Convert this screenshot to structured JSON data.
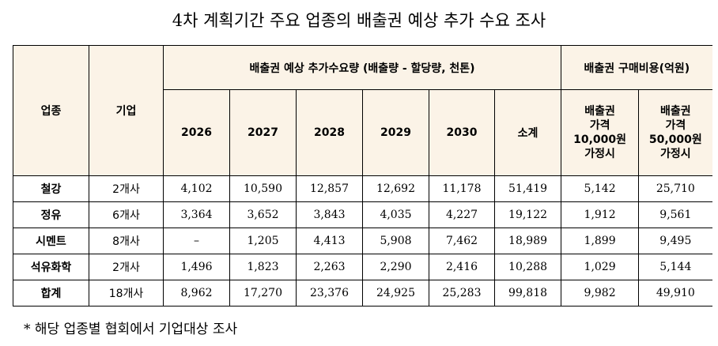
{
  "title": "4차 계획기간 주요 업종의 배출권 예상 추가 수요 조사",
  "headers": {
    "industry": "업종",
    "companies": "기업",
    "demand_group": "배출권 예상 추가수요량 (배출량 - 할당량, 천톤)",
    "cost_group": "배출권 구매비용(억원)",
    "years": [
      "2026",
      "2027",
      "2028",
      "2029",
      "2030"
    ],
    "subtotal": "소계",
    "cost_10000": "배출권\n가격\n10,000원\n가정시",
    "cost_50000": "배출권\n가격\n50,000원\n가정시"
  },
  "rows": [
    {
      "industry": "철강",
      "companies": "2개사",
      "values": [
        "4,102",
        "10,590",
        "12,857",
        "12,692",
        "11,178",
        "51,419",
        "5,142",
        "25,710"
      ]
    },
    {
      "industry": "정유",
      "companies": "6개사",
      "values": [
        "3,364",
        "3,652",
        "3,843",
        "4,035",
        "4,227",
        "19,122",
        "1,912",
        "9,561"
      ]
    },
    {
      "industry": "시멘트",
      "companies": "8개사",
      "values": [
        "–",
        "1,205",
        "4,413",
        "5,908",
        "7,462",
        "18,989",
        "1,899",
        "9,495"
      ]
    },
    {
      "industry": "석유화학",
      "companies": "2개사",
      "values": [
        "1,496",
        "1,823",
        "2,263",
        "2,290",
        "2,416",
        "10,288",
        "1,029",
        "5,144"
      ]
    },
    {
      "industry": "합계",
      "companies": "18개사",
      "values": [
        "8,962",
        "17,270",
        "23,376",
        "24,925",
        "25,283",
        "99,818",
        "9,982",
        "49,910"
      ]
    }
  ],
  "footnote": "* 해당 업종별 협회에서 기업대상 조사"
}
